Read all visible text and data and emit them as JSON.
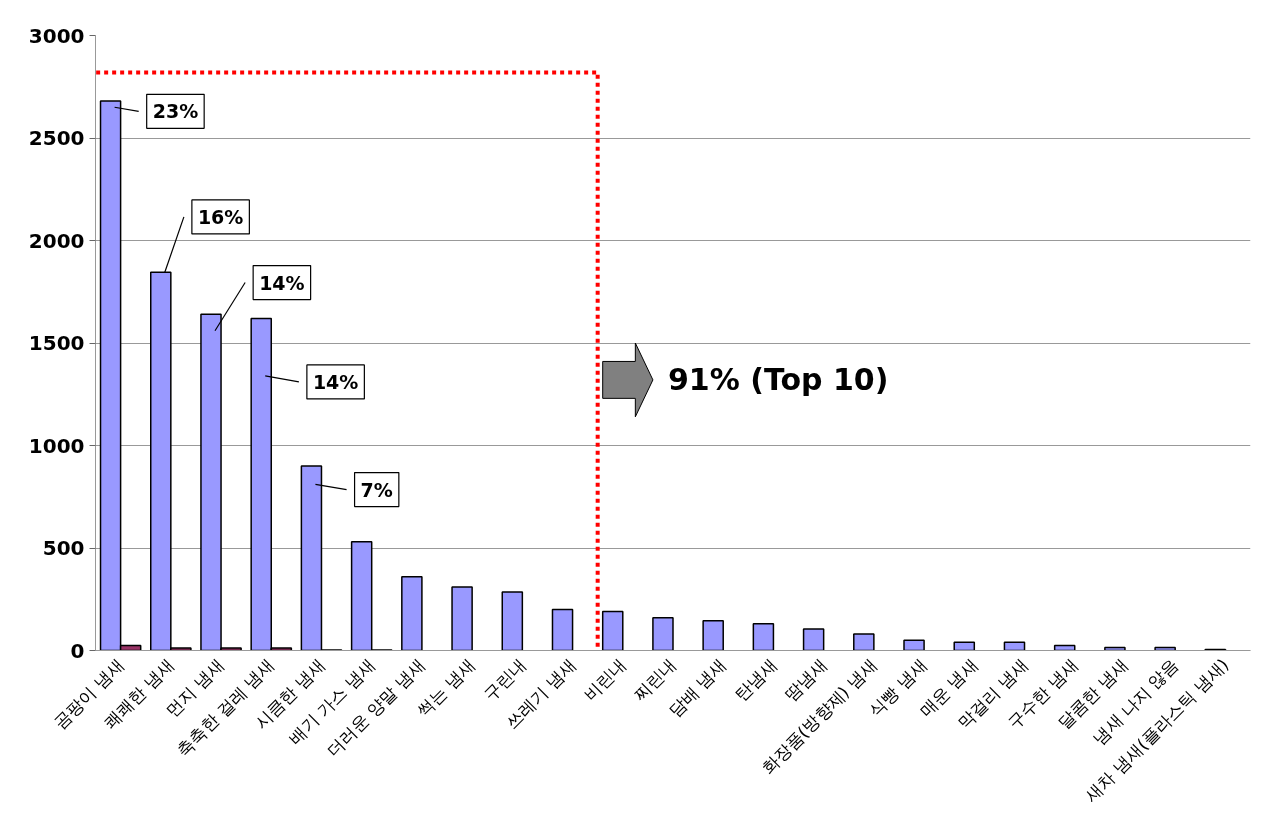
{
  "chart_data": {
    "type": "bar",
    "categories": [
      "곰팡이 냄새",
      "쾌쾌한 냄새",
      "먼지 냄새",
      "축축한 걸레 냄새",
      "시큼한 냄새",
      "배기 가스 냄새",
      "더러운 양말 냄새",
      "썩는 냄새",
      "구린내",
      "쓰레기 냄새",
      "비린내",
      "찌린내",
      "담배 냄새",
      "탄냄새",
      "땀냄새",
      "화장품(방향제) 냄새",
      "식빵 냄새",
      "매운 냄새",
      "막걸리 냄새",
      "구수한 냄새",
      "달콤한 냄새",
      "냄새 나지 않음",
      "새차 냄새(플라스틱 냄새)"
    ],
    "series": [
      {
        "color": "#9999ff",
        "values": [
          2680,
          1845,
          1640,
          1620,
          900,
          530,
          360,
          310,
          285,
          200,
          190,
          160,
          145,
          130,
          105,
          80,
          50,
          40,
          40,
          25,
          15,
          15,
          5
        ]
      },
      {
        "color": "#993366",
        "values": [
          25,
          12,
          12,
          12,
          3,
          3,
          null,
          null,
          null,
          null,
          null,
          null,
          null,
          null,
          null,
          null,
          null,
          null,
          null,
          null,
          null,
          null,
          null
        ]
      }
    ],
    "ylim": [
      0,
      3000
    ],
    "yticks": [
      0,
      500,
      1000,
      1500,
      2000,
      2500,
      3000
    ],
    "grid": "y",
    "annotations": [
      {
        "text": "23%",
        "x": "곰팡이 냄새",
        "y": 2650
      },
      {
        "text": "16%",
        "x": "쾌쾌한 냄새",
        "y": 1845
      },
      {
        "text": "14%",
        "x": "먼지 냄새",
        "y": 1560
      },
      {
        "text": "14%",
        "x": "축축한 걸레 냄새",
        "y": 1340
      },
      {
        "text": "7%",
        "x": "시큼한 냄새",
        "y": 810
      },
      "91% (Top 10)"
    ]
  }
}
